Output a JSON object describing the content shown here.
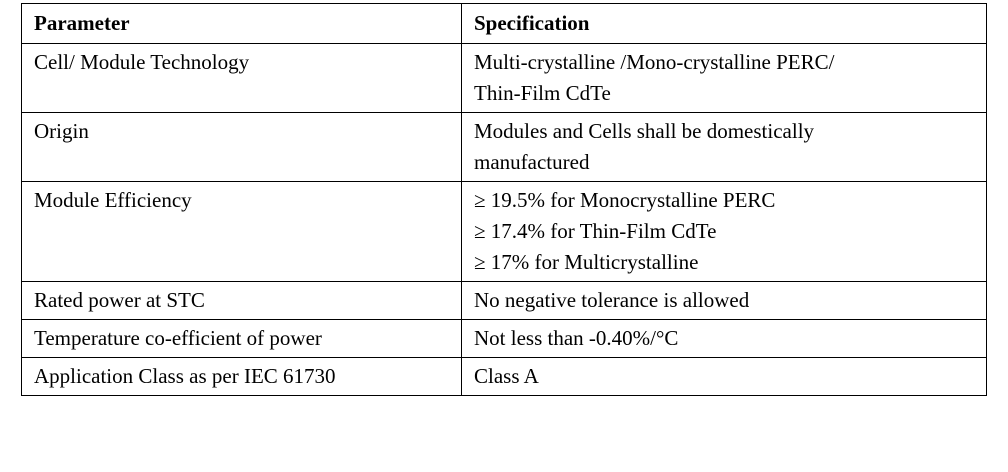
{
  "table": {
    "headers": [
      "Parameter",
      "Specification"
    ],
    "rows": [
      {
        "parameter": "Cell/ Module Technology",
        "specification": [
          "Multi-crystalline /Mono-crystalline PERC/",
          "Thin-Film CdTe"
        ]
      },
      {
        "parameter": "Origin",
        "specification": [
          "Modules and Cells shall be domestically",
          "manufactured"
        ]
      },
      {
        "parameter": "Module Efficiency",
        "specification": [
          "≥ 19.5% for Monocrystalline PERC",
          "≥ 17.4% for Thin-Film CdTe",
          "≥ 17% for Multicrystalline"
        ]
      },
      {
        "parameter": "Rated power at STC",
        "specification": [
          "No negative tolerance is allowed"
        ]
      },
      {
        "parameter": "Temperature co-efficient of power",
        "specification": [
          "Not less than -0.40%/°C"
        ]
      },
      {
        "parameter": "Application Class as per IEC 61730",
        "specification": [
          "Class A"
        ]
      }
    ]
  }
}
